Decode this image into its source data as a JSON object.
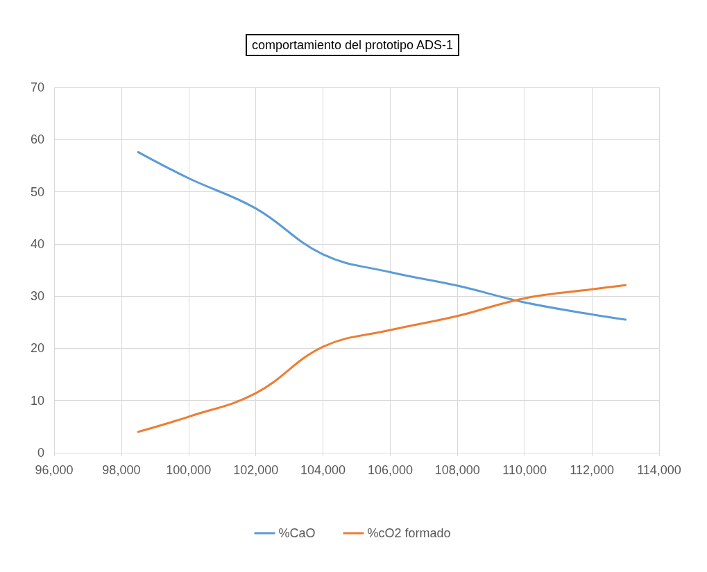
{
  "chart_data": {
    "type": "line",
    "title": "comportamiento del prototipo ADS-1",
    "x": [
      98500,
      100000,
      102000,
      104000,
      106000,
      108000,
      110000,
      112000,
      113000
    ],
    "series": [
      {
        "name": "%CaO",
        "color": "#5b9bd5",
        "values": [
          57.6,
          52.6,
          46.8,
          38,
          34.6,
          32,
          28.8,
          26.5,
          25.5
        ]
      },
      {
        "name": "%cO2 formado",
        "color": "#ed7d31",
        "values": [
          4,
          6.9,
          11.4,
          20.3,
          23.5,
          26.2,
          29.6,
          31.3,
          32.1
        ]
      }
    ],
    "xlim": [
      96000,
      114000
    ],
    "xticks": [
      {
        "value": 96000,
        "label": "96,000"
      },
      {
        "value": 98000,
        "label": "98,000"
      },
      {
        "value": 100000,
        "label": "100,000"
      },
      {
        "value": 102000,
        "label": "102,000"
      },
      {
        "value": 104000,
        "label": "104,000"
      },
      {
        "value": 106000,
        "label": "106,000"
      },
      {
        "value": 108000,
        "label": "108,000"
      },
      {
        "value": 110000,
        "label": "110,000"
      },
      {
        "value": 112000,
        "label": "112,000"
      },
      {
        "value": 114000,
        "label": "114,000"
      }
    ],
    "ylim": [
      0,
      70
    ],
    "yticks": [
      0,
      10,
      20,
      30,
      40,
      50,
      60,
      70
    ],
    "grid": true,
    "legend": "bottom",
    "marker": "none",
    "line_style": "solid"
  }
}
